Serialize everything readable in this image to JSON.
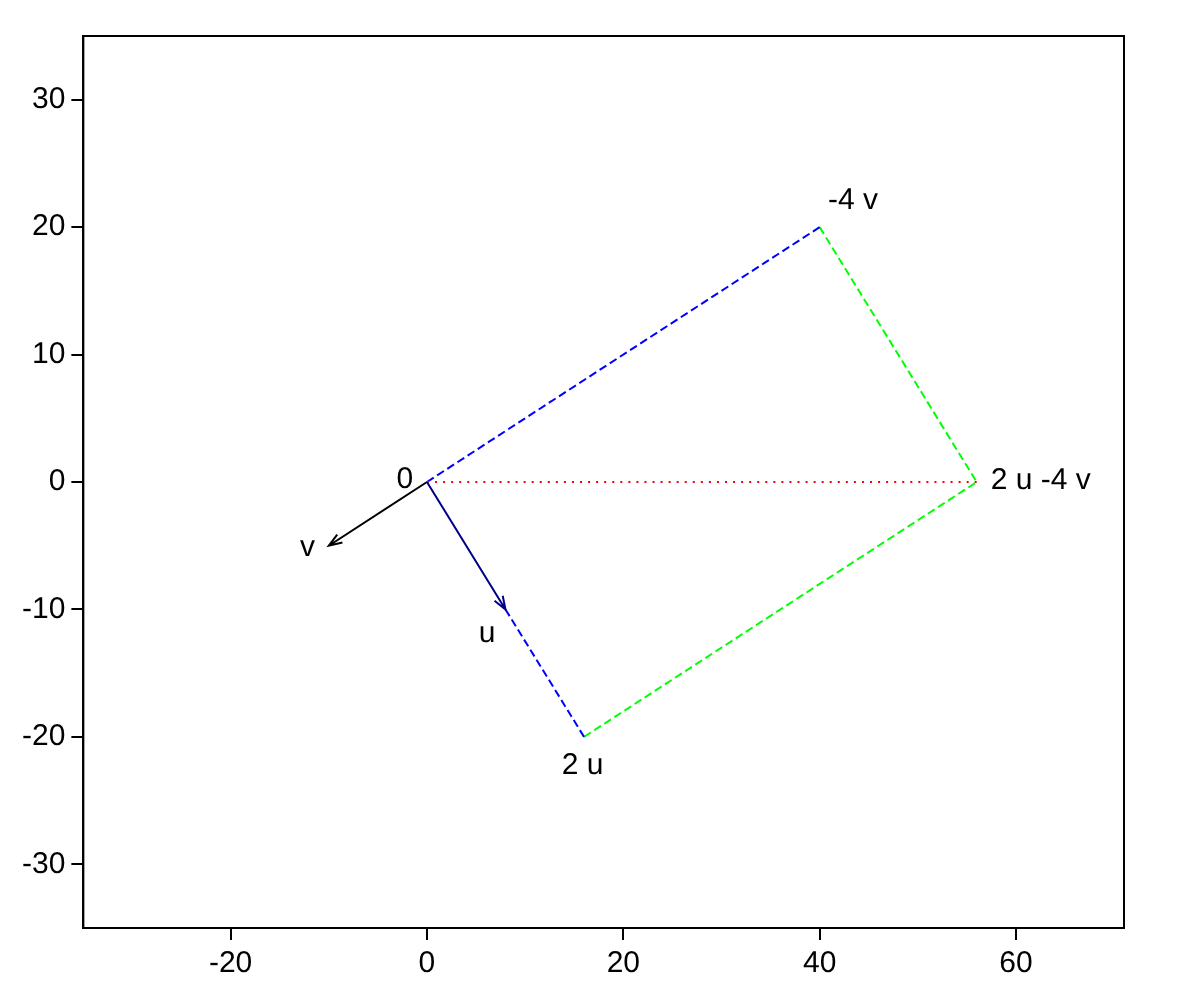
{
  "chart_data": {
    "type": "line",
    "xlim": [
      -35,
      71
    ],
    "ylim": [
      -35,
      35
    ],
    "xticks": [
      -20,
      0,
      20,
      40,
      60
    ],
    "yticks": [
      -30,
      -20,
      -10,
      0,
      10,
      20,
      30
    ],
    "grid": false,
    "legend": false,
    "marker": "none",
    "series": [
      {
        "color": "#ff0000",
        "line_style": "dotted",
        "x": [
          0,
          56
        ],
        "values": [
          0,
          0
        ]
      },
      {
        "color": "#0000ff",
        "line_style": "dashed",
        "x": [
          0,
          40
        ],
        "values": [
          0,
          20
        ]
      },
      {
        "color": "#0000ff",
        "line_style": "dashed",
        "x": [
          8,
          16
        ],
        "values": [
          -10,
          -20
        ]
      },
      {
        "color": "#00ff00",
        "line_style": "dashed",
        "x": [
          40,
          56,
          16
        ],
        "values": [
          20,
          0,
          -20
        ]
      },
      {
        "color": "#000000",
        "line_style": "solid",
        "x": [
          0,
          -10
        ],
        "values": [
          0,
          -5
        ]
      },
      {
        "color": "#00008b",
        "line_style": "solid",
        "x": [
          0,
          8
        ],
        "values": [
          0,
          -10
        ]
      }
    ],
    "annotations": [
      {
        "text": "0",
        "x": 0,
        "y": 0
      },
      {
        "text": "v",
        "x": -10,
        "y": -5
      },
      {
        "text": "u",
        "x": 8,
        "y": -10
      },
      {
        "text": "2 u",
        "x": 16,
        "y": -20
      },
      {
        "text": "-4 v",
        "x": 40,
        "y": 20
      },
      {
        "text": "2 u -4 v",
        "x": 56,
        "y": 0
      }
    ]
  }
}
